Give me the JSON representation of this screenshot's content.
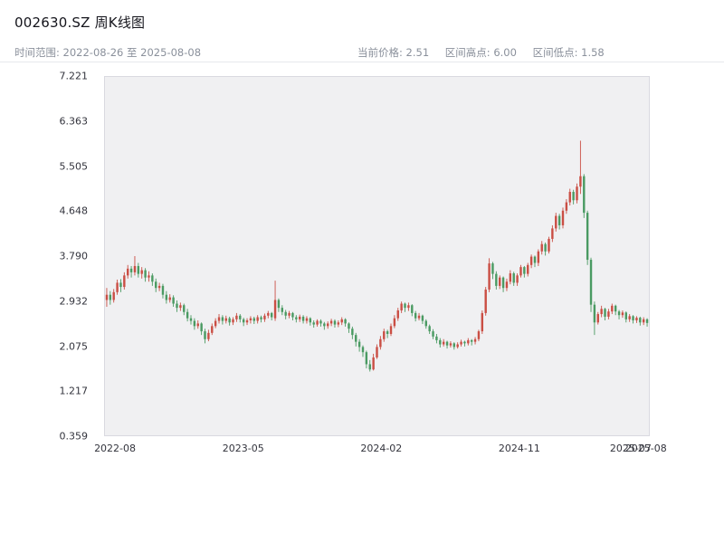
{
  "header": {
    "title": "002630.SZ 周K线图",
    "time_range": "时间范围: 2022-08-26 至 2025-08-08",
    "stats": [
      {
        "label": "当前价格:",
        "value": "2.51"
      },
      {
        "label": "区间高点:",
        "value": "6.00"
      },
      {
        "label": "区间低点:",
        "value": "1.58"
      }
    ]
  },
  "chart_data": {
    "type": "candlestick",
    "title": "002630.SZ 周K线图",
    "symbol": "002630.SZ",
    "interval": "weekly",
    "start_date": "2022-08-26",
    "end_date": "2025-08-08",
    "current_price": 2.51,
    "range_high": 6.0,
    "range_low": 1.58,
    "xlabel": "",
    "ylabel": "",
    "grid": false,
    "ylim": [
      0.359,
      7.221
    ],
    "yticks": [
      "7.221",
      "6.363",
      "5.505",
      "4.648",
      "3.790",
      "2.932",
      "2.075",
      "1.217",
      "0.359"
    ],
    "xticks": [
      {
        "label": "2022-08",
        "pos": 0.02
      },
      {
        "label": "2023-05",
        "pos": 0.255
      },
      {
        "label": "2024-02",
        "pos": 0.508
      },
      {
        "label": "2024-11",
        "pos": 0.761
      },
      {
        "label": "2025-07",
        "pos": 0.965
      },
      {
        "label": "2025-08",
        "pos": 0.993
      }
    ],
    "colors": {
      "up": "#ca4e44",
      "down": "#4a9a62",
      "plot_bg": "#f0f0f2",
      "plot_border": "#d9d9e0",
      "tick_text": "#33343d"
    },
    "candles_format": [
      "open",
      "high",
      "low",
      "close"
    ],
    "candles": [
      [
        2.95,
        3.18,
        2.82,
        3.05
      ],
      [
        3.05,
        3.12,
        2.86,
        2.95
      ],
      [
        2.95,
        3.16,
        2.9,
        3.1
      ],
      [
        3.1,
        3.34,
        3.05,
        3.28
      ],
      [
        3.28,
        3.35,
        3.1,
        3.2
      ],
      [
        3.2,
        3.48,
        3.15,
        3.42
      ],
      [
        3.42,
        3.62,
        3.36,
        3.55
      ],
      [
        3.55,
        3.6,
        3.38,
        3.48
      ],
      [
        3.48,
        3.79,
        3.42,
        3.6
      ],
      [
        3.6,
        3.66,
        3.38,
        3.45
      ],
      [
        3.45,
        3.58,
        3.36,
        3.52
      ],
      [
        3.52,
        3.56,
        3.3,
        3.38
      ],
      [
        3.38,
        3.5,
        3.3,
        3.42
      ],
      [
        3.42,
        3.46,
        3.22,
        3.3
      ],
      [
        3.3,
        3.36,
        3.1,
        3.18
      ],
      [
        3.18,
        3.28,
        3.12,
        3.22
      ],
      [
        3.22,
        3.26,
        2.98,
        3.05
      ],
      [
        3.05,
        3.12,
        2.88,
        2.95
      ],
      [
        2.95,
        3.06,
        2.9,
        3.0
      ],
      [
        3.0,
        3.04,
        2.82,
        2.88
      ],
      [
        2.88,
        2.94,
        2.72,
        2.8
      ],
      [
        2.8,
        2.9,
        2.74,
        2.85
      ],
      [
        2.85,
        2.88,
        2.66,
        2.72
      ],
      [
        2.72,
        2.78,
        2.54,
        2.6
      ],
      [
        2.6,
        2.66,
        2.48,
        2.55
      ],
      [
        2.55,
        2.6,
        2.38,
        2.45
      ],
      [
        2.45,
        2.56,
        2.4,
        2.5
      ],
      [
        2.5,
        2.52,
        2.28,
        2.35
      ],
      [
        2.35,
        2.4,
        2.12,
        2.2
      ],
      [
        2.2,
        2.38,
        2.16,
        2.32
      ],
      [
        2.32,
        2.5,
        2.28,
        2.45
      ],
      [
        2.45,
        2.6,
        2.41,
        2.55
      ],
      [
        2.55,
        2.68,
        2.5,
        2.62
      ],
      [
        2.62,
        2.66,
        2.48,
        2.55
      ],
      [
        2.55,
        2.65,
        2.5,
        2.6
      ],
      [
        2.6,
        2.63,
        2.46,
        2.52
      ],
      [
        2.52,
        2.62,
        2.47,
        2.58
      ],
      [
        2.58,
        2.7,
        2.53,
        2.65
      ],
      [
        2.65,
        2.68,
        2.52,
        2.58
      ],
      [
        2.58,
        2.61,
        2.45,
        2.52
      ],
      [
        2.52,
        2.6,
        2.47,
        2.56
      ],
      [
        2.56,
        2.64,
        2.5,
        2.6
      ],
      [
        2.6,
        2.63,
        2.49,
        2.55
      ],
      [
        2.55,
        2.66,
        2.5,
        2.62
      ],
      [
        2.62,
        2.65,
        2.52,
        2.58
      ],
      [
        2.58,
        2.69,
        2.53,
        2.65
      ],
      [
        2.65,
        2.74,
        2.6,
        2.7
      ],
      [
        2.7,
        2.72,
        2.56,
        2.62
      ],
      [
        2.6,
        3.32,
        2.55,
        2.95
      ],
      [
        2.95,
        2.98,
        2.72,
        2.8
      ],
      [
        2.8,
        2.85,
        2.66,
        2.72
      ],
      [
        2.72,
        2.76,
        2.58,
        2.65
      ],
      [
        2.65,
        2.74,
        2.6,
        2.7
      ],
      [
        2.7,
        2.72,
        2.56,
        2.62
      ],
      [
        2.62,
        2.66,
        2.52,
        2.58
      ],
      [
        2.58,
        2.67,
        2.53,
        2.63
      ],
      [
        2.63,
        2.66,
        2.5,
        2.55
      ],
      [
        2.55,
        2.64,
        2.5,
        2.6
      ],
      [
        2.6,
        2.62,
        2.46,
        2.52
      ],
      [
        2.52,
        2.56,
        2.42,
        2.48
      ],
      [
        2.48,
        2.58,
        2.44,
        2.55
      ],
      [
        2.55,
        2.58,
        2.44,
        2.5
      ],
      [
        2.5,
        2.53,
        2.38,
        2.45
      ],
      [
        2.45,
        2.54,
        2.4,
        2.5
      ],
      [
        2.5,
        2.59,
        2.45,
        2.55
      ],
      [
        2.55,
        2.58,
        2.42,
        2.48
      ],
      [
        2.48,
        2.56,
        2.43,
        2.52
      ],
      [
        2.52,
        2.62,
        2.47,
        2.58
      ],
      [
        2.58,
        2.6,
        2.44,
        2.5
      ],
      [
        2.5,
        2.52,
        2.32,
        2.4
      ],
      [
        2.4,
        2.44,
        2.2,
        2.28
      ],
      [
        2.28,
        2.32,
        2.06,
        2.15
      ],
      [
        2.15,
        2.2,
        1.96,
        2.05
      ],
      [
        2.05,
        2.08,
        1.86,
        1.95
      ],
      [
        1.95,
        1.98,
        1.64,
        1.72
      ],
      [
        1.72,
        1.8,
        1.58,
        1.62
      ],
      [
        1.62,
        1.92,
        1.6,
        1.85
      ],
      [
        1.85,
        2.1,
        1.82,
        2.05
      ],
      [
        2.05,
        2.26,
        2.0,
        2.2
      ],
      [
        2.2,
        2.4,
        2.15,
        2.35
      ],
      [
        2.35,
        2.38,
        2.22,
        2.3
      ],
      [
        2.3,
        2.5,
        2.26,
        2.45
      ],
      [
        2.45,
        2.66,
        2.41,
        2.6
      ],
      [
        2.6,
        2.8,
        2.55,
        2.75
      ],
      [
        2.75,
        2.92,
        2.7,
        2.88
      ],
      [
        2.88,
        2.9,
        2.72,
        2.8
      ],
      [
        2.8,
        2.9,
        2.74,
        2.85
      ],
      [
        2.85,
        2.87,
        2.64,
        2.7
      ],
      [
        2.7,
        2.74,
        2.54,
        2.6
      ],
      [
        2.6,
        2.7,
        2.56,
        2.65
      ],
      [
        2.65,
        2.67,
        2.49,
        2.55
      ],
      [
        2.55,
        2.58,
        2.4,
        2.45
      ],
      [
        2.45,
        2.48,
        2.3,
        2.35
      ],
      [
        2.35,
        2.39,
        2.2,
        2.25
      ],
      [
        2.25,
        2.3,
        2.12,
        2.18
      ],
      [
        2.18,
        2.22,
        2.04,
        2.1
      ],
      [
        2.1,
        2.2,
        2.06,
        2.15
      ],
      [
        2.15,
        2.17,
        2.02,
        2.08
      ],
      [
        2.08,
        2.16,
        2.04,
        2.12
      ],
      [
        2.12,
        2.14,
        2.0,
        2.05
      ],
      [
        2.05,
        2.14,
        2.02,
        2.1
      ],
      [
        2.1,
        2.19,
        2.06,
        2.15
      ],
      [
        2.15,
        2.17,
        2.06,
        2.12
      ],
      [
        2.12,
        2.22,
        2.08,
        2.18
      ],
      [
        2.18,
        2.2,
        2.08,
        2.15
      ],
      [
        2.15,
        2.24,
        2.1,
        2.2
      ],
      [
        2.2,
        2.38,
        2.16,
        2.35
      ],
      [
        2.35,
        2.75,
        2.3,
        2.7
      ],
      [
        2.7,
        3.2,
        2.65,
        3.15
      ],
      [
        3.15,
        3.75,
        3.1,
        3.65
      ],
      [
        3.65,
        3.68,
        3.35,
        3.45
      ],
      [
        3.45,
        3.5,
        3.15,
        3.22
      ],
      [
        3.22,
        3.42,
        3.16,
        3.38
      ],
      [
        3.38,
        3.4,
        3.1,
        3.18
      ],
      [
        3.18,
        3.36,
        3.12,
        3.3
      ],
      [
        3.3,
        3.52,
        3.25,
        3.46
      ],
      [
        3.46,
        3.49,
        3.22,
        3.28
      ],
      [
        3.28,
        3.46,
        3.22,
        3.42
      ],
      [
        3.42,
        3.62,
        3.38,
        3.58
      ],
      [
        3.58,
        3.6,
        3.38,
        3.45
      ],
      [
        3.45,
        3.66,
        3.4,
        3.62
      ],
      [
        3.62,
        3.82,
        3.56,
        3.78
      ],
      [
        3.78,
        3.8,
        3.58,
        3.66
      ],
      [
        3.66,
        3.92,
        3.6,
        3.88
      ],
      [
        3.88,
        4.08,
        3.82,
        4.02
      ],
      [
        4.02,
        4.05,
        3.8,
        3.88
      ],
      [
        3.88,
        4.16,
        3.84,
        4.12
      ],
      [
        4.12,
        4.38,
        4.06,
        4.32
      ],
      [
        4.32,
        4.62,
        4.26,
        4.56
      ],
      [
        4.56,
        4.6,
        4.3,
        4.38
      ],
      [
        4.38,
        4.72,
        4.32,
        4.66
      ],
      [
        4.66,
        4.88,
        4.6,
        4.82
      ],
      [
        4.82,
        5.08,
        4.76,
        5.02
      ],
      [
        5.02,
        5.06,
        4.78,
        4.86
      ],
      [
        4.86,
        5.18,
        4.8,
        5.12
      ],
      [
        5.12,
        6.0,
        4.98,
        5.32
      ],
      [
        5.32,
        5.36,
        4.52,
        4.62
      ],
      [
        4.62,
        4.66,
        3.62,
        3.72
      ],
      [
        3.72,
        3.76,
        2.72,
        2.86
      ],
      [
        2.86,
        2.92,
        2.28,
        2.52
      ],
      [
        2.52,
        2.72,
        2.48,
        2.68
      ],
      [
        2.68,
        2.84,
        2.62,
        2.78
      ],
      [
        2.78,
        2.8,
        2.56,
        2.63
      ],
      [
        2.63,
        2.78,
        2.58,
        2.73
      ],
      [
        2.73,
        2.88,
        2.68,
        2.84
      ],
      [
        2.84,
        2.86,
        2.66,
        2.73
      ],
      [
        2.73,
        2.76,
        2.58,
        2.66
      ],
      [
        2.66,
        2.75,
        2.61,
        2.71
      ],
      [
        2.71,
        2.73,
        2.52,
        2.58
      ],
      [
        2.58,
        2.68,
        2.53,
        2.64
      ],
      [
        2.64,
        2.66,
        2.5,
        2.56
      ],
      [
        2.56,
        2.64,
        2.51,
        2.61
      ],
      [
        2.61,
        2.63,
        2.46,
        2.52
      ],
      [
        2.52,
        2.62,
        2.47,
        2.58
      ],
      [
        2.58,
        2.6,
        2.44,
        2.51
      ]
    ]
  }
}
